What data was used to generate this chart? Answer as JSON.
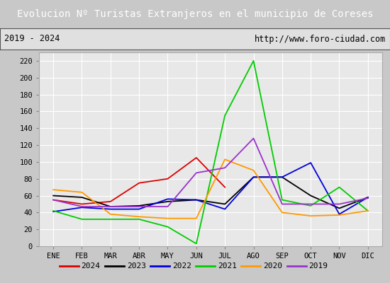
{
  "title": "Evolucion Nº Turistas Extranjeros en el municipio de Coreses",
  "subtitle_left": "2019 - 2024",
  "subtitle_right": "http://www.foro-ciudad.com",
  "title_bg_color": "#4a7abf",
  "title_text_color": "#ffffff",
  "months": [
    "ENE",
    "FEB",
    "MAR",
    "ABR",
    "MAY",
    "JUN",
    "JUL",
    "AGO",
    "SEP",
    "OCT",
    "NOV",
    "DIC"
  ],
  "ylim": [
    0,
    230
  ],
  "yticks": [
    0,
    20,
    40,
    60,
    80,
    100,
    120,
    140,
    160,
    180,
    200,
    220
  ],
  "series": {
    "2024": {
      "color": "#dd0000",
      "data": [
        55,
        50,
        53,
        75,
        80,
        105,
        70,
        null,
        null,
        null,
        null,
        null
      ]
    },
    "2023": {
      "color": "#000000",
      "data": [
        60,
        58,
        47,
        48,
        53,
        55,
        50,
        82,
        82,
        60,
        45,
        58
      ]
    },
    "2022": {
      "color": "#0000dd",
      "data": [
        41,
        46,
        44,
        44,
        56,
        55,
        44,
        82,
        82,
        99,
        38,
        58
      ]
    },
    "2021": {
      "color": "#00cc00",
      "data": [
        42,
        32,
        32,
        32,
        23,
        3,
        155,
        220,
        55,
        48,
        70,
        42
      ]
    },
    "2020": {
      "color": "#ff9900",
      "data": [
        67,
        64,
        38,
        35,
        33,
        33,
        103,
        90,
        40,
        36,
        37,
        42
      ]
    },
    "2019": {
      "color": "#9933cc",
      "data": [
        55,
        47,
        47,
        47,
        47,
        87,
        93,
        128,
        50,
        50,
        50,
        57
      ]
    }
  },
  "legend_order": [
    "2024",
    "2023",
    "2022",
    "2021",
    "2020",
    "2019"
  ],
  "plot_bg_color": "#e8e8e8",
  "fig_bg_color": "#c8c8c8",
  "grid_color": "#ffffff",
  "subtitle_bg": "#e0e0e0"
}
